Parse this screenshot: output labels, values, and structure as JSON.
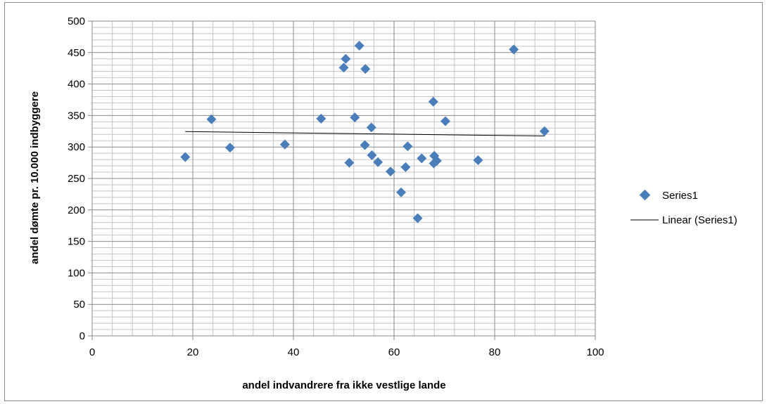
{
  "chart_data": {
    "type": "scatter",
    "xlabel": "andel indvandrere fra ikke vestlige lande",
    "ylabel": "andel dømte pr. 10.000 indbyggere",
    "xlim": [
      0,
      100
    ],
    "ylim": [
      0,
      500
    ],
    "x_ticks": [
      0,
      20,
      40,
      60,
      80,
      100
    ],
    "y_ticks": [
      0,
      50,
      100,
      150,
      200,
      250,
      300,
      350,
      400,
      450,
      500
    ],
    "grid": true,
    "legend_position": "right",
    "marker_color": "#4a7ebb",
    "trendline_color": "#000000",
    "series": [
      {
        "name": "Series1",
        "marker": "diamond",
        "points": [
          [
            18.5,
            284
          ],
          [
            23.7,
            344
          ],
          [
            27.4,
            299
          ],
          [
            38.3,
            304
          ],
          [
            45.5,
            345
          ],
          [
            50,
            426
          ],
          [
            50.4,
            440
          ],
          [
            51.1,
            275
          ],
          [
            52.2,
            347
          ],
          [
            53.1,
            461
          ],
          [
            54.2,
            303
          ],
          [
            54.3,
            424
          ],
          [
            55.5,
            331
          ],
          [
            55.6,
            287
          ],
          [
            56.8,
            276
          ],
          [
            59.3,
            261
          ],
          [
            61.4,
            228
          ],
          [
            62.3,
            268
          ],
          [
            62.7,
            301
          ],
          [
            64.7,
            187
          ],
          [
            65.5,
            282
          ],
          [
            67.8,
            372
          ],
          [
            67.9,
            274
          ],
          [
            68,
            286
          ],
          [
            68.5,
            278
          ],
          [
            70.2,
            341
          ],
          [
            76.7,
            279
          ],
          [
            83.8,
            455
          ],
          [
            89.9,
            325
          ]
        ]
      }
    ],
    "trendline": {
      "name": "Linear (Series1)",
      "type": "linear",
      "x_range": [
        18.5,
        89.9
      ],
      "y_values": [
        324.5,
        317.5
      ]
    }
  }
}
